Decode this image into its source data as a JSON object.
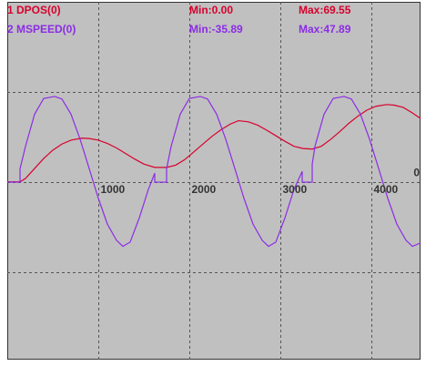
{
  "chart_data": {
    "type": "line",
    "series": [
      {
        "name": "1 DPOS(0)",
        "min": "Min:0.00",
        "max": "Max:69.55",
        "color": "#d8002c",
        "axis": "y2",
        "x": [
          0,
          140,
          200,
          300,
          400,
          500,
          600,
          700,
          820,
          900,
          1000,
          1100,
          1200,
          1300,
          1400,
          1500,
          1620,
          1750,
          1850,
          1950,
          2050,
          2150,
          2250,
          2350,
          2450,
          2540,
          2650,
          2750,
          2850,
          2950,
          3050,
          3150,
          3250,
          3350,
          3450,
          3550,
          3650,
          3750,
          3850,
          3950,
          4050,
          4170,
          4250,
          4350,
          4450,
          4540
        ],
        "values": [
          0,
          0,
          3,
          12,
          21,
          28.5,
          34,
          37.5,
          39.3,
          39,
          37.5,
          34.5,
          30.5,
          25.5,
          20.5,
          16,
          13,
          13,
          15,
          20,
          27,
          34,
          41,
          47,
          52,
          55,
          54,
          51,
          46.5,
          41.5,
          36.5,
          32,
          30,
          29.5,
          32,
          38,
          45,
          52.5,
          59,
          64.5,
          68,
          69.55,
          69,
          67,
          62,
          57
        ]
      },
      {
        "name": "2 MSPEED(0)",
        "min": "Min:-35.89",
        "max": "Max:47.89",
        "color": "#8c2ce6",
        "x": [
          0,
          140,
          140,
          200,
          300,
          400,
          520,
          600,
          700,
          800,
          900,
          1000,
          1100,
          1200,
          1270,
          1350,
          1450,
          1550,
          1620,
          1620,
          1750,
          1750,
          1800,
          1900,
          2000,
          2120,
          2200,
          2300,
          2400,
          2500,
          2600,
          2700,
          2800,
          2870,
          2950,
          3050,
          3150,
          3240,
          3240,
          3350,
          3350,
          3380,
          3480,
          3580,
          3700,
          3780,
          3880,
          3980,
          4080,
          4180,
          4280,
          4380,
          4450,
          4540
        ],
        "values": [
          0,
          0,
          7.5,
          20,
          38,
          46.8,
          47.89,
          46.5,
          38,
          24,
          7.6,
          -9,
          -23.5,
          -32.5,
          -35.89,
          -33.5,
          -20,
          -4,
          5,
          0,
          0,
          7.5,
          20,
          38,
          46.8,
          47.89,
          46.5,
          38,
          24,
          7.6,
          -9,
          -23.5,
          -32.5,
          -35.89,
          -33.5,
          -20,
          -4,
          6,
          0,
          0,
          10,
          20,
          38,
          46.8,
          47.89,
          46.5,
          38,
          24,
          7.6,
          -9,
          -23.5,
          -32.5,
          -35.89,
          -34
        ]
      }
    ],
    "xlim": [
      0,
      4540
    ],
    "xticks": [
      1000,
      2000,
      3000,
      4000
    ],
    "ylim": [
      -99.2,
      100.8
    ],
    "y2lim": [
      -160,
      162
    ],
    "yticks": [
      0
    ],
    "grid": true
  }
}
